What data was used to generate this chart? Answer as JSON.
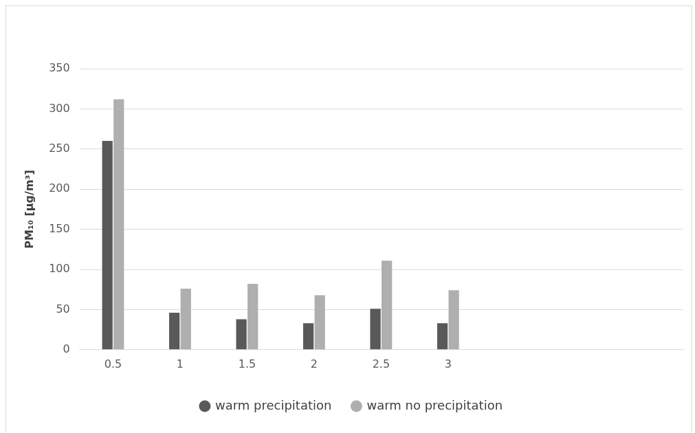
{
  "chart_data": {
    "type": "bar",
    "ylabel": "PM₁₀ [µg/m³]",
    "categories": [
      "0.5",
      "1",
      "1.5",
      "2",
      "2.5",
      "3",
      null,
      null,
      null
    ],
    "series": [
      {
        "name": "warm precipitation",
        "color": "#595959",
        "values": [
          260,
          46,
          38,
          33,
          51,
          33,
          null,
          null,
          null
        ]
      },
      {
        "name": "warm no precipitation",
        "color": "#afafaf",
        "values": [
          312,
          76,
          82,
          68,
          111,
          74,
          null,
          null,
          null
        ]
      }
    ],
    "ylim": [
      0,
      350
    ],
    "yticks": [
      0,
      50,
      100,
      150,
      200,
      250,
      300,
      350
    ],
    "grid": "y",
    "legend": "bottom"
  }
}
